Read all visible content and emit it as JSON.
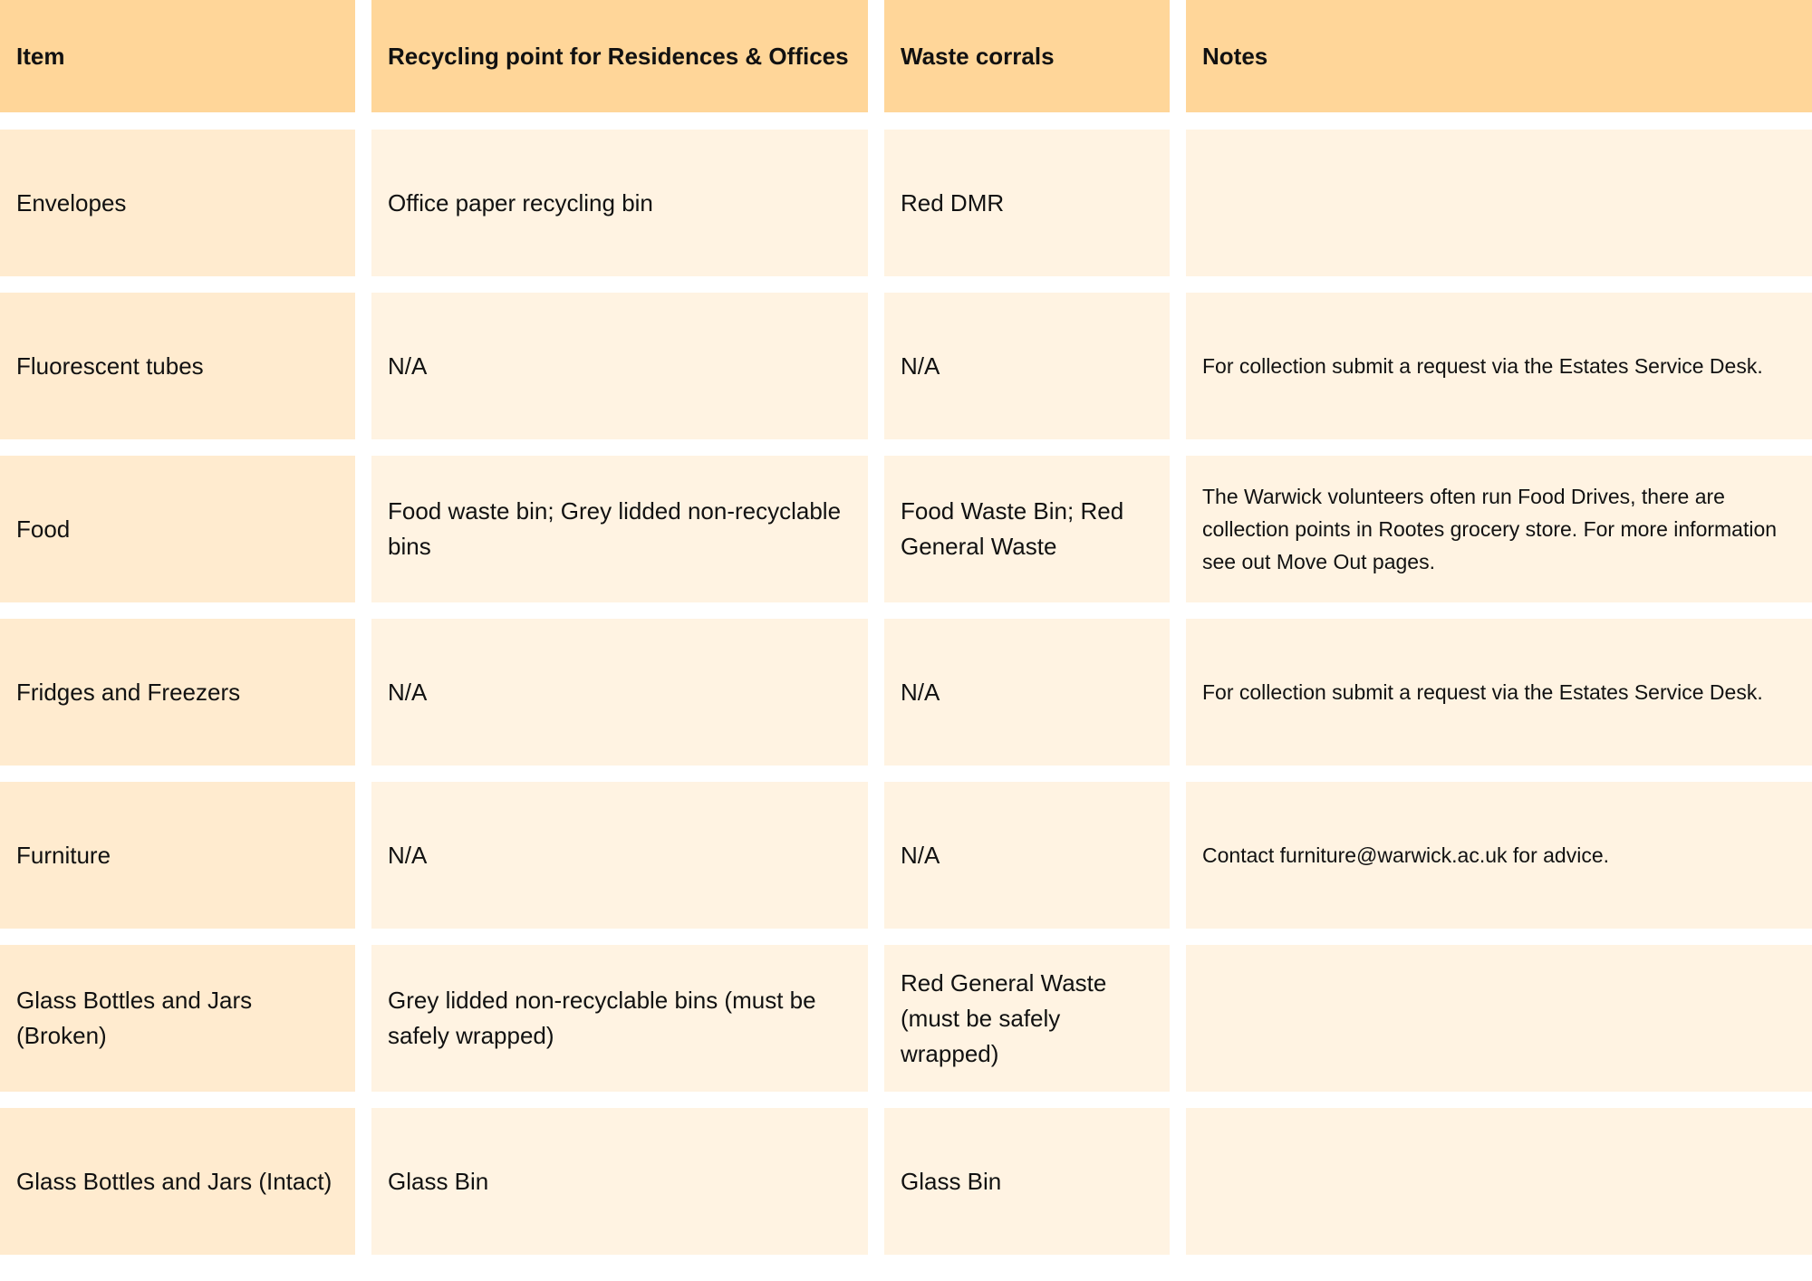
{
  "colors": {
    "header": "#FFD699",
    "item_column": "#FFEBCF",
    "cell": "#FFF3E2"
  },
  "table": {
    "headers": [
      "Item",
      "Recycling point for Residences & Offices",
      "Waste corrals",
      "Notes"
    ],
    "rows": [
      [
        "Envelopes",
        "Office paper recycling bin",
        "Red DMR",
        ""
      ],
      [
        "Fluorescent tubes",
        "N/A",
        "N/A",
        "For collection submit a request via the Estates Service Desk."
      ],
      [
        "Food",
        "Food waste bin; Grey lidded non-recyclable bins",
        "Food Waste Bin; Red General Waste",
        "The Warwick volunteers often run Food Drives, there are collection points in Rootes grocery store. For more information see out Move Out pages."
      ],
      [
        "Fridges and Freezers",
        "N/A",
        "N/A",
        "For collection submit a request via the Estates Service Desk."
      ],
      [
        "Furniture",
        "N/A",
        "N/A",
        "Contact furniture@warwick.ac.uk for advice."
      ],
      [
        "Glass Bottles and Jars (Broken)",
        "Grey lidded non-recyclable bins (must be safely wrapped)",
        "Red General Waste (must be safely wrapped)",
        ""
      ],
      [
        "Glass Bottles and Jars (Intact)",
        "Glass Bin",
        "Glass Bin",
        ""
      ]
    ]
  }
}
